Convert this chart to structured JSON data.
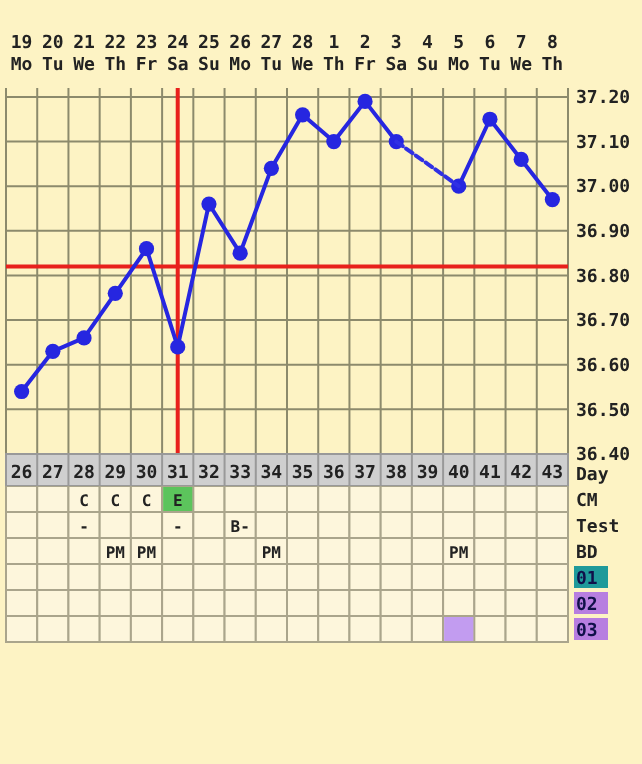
{
  "chart_data": [
    {
      "type": "line",
      "categories": [
        "26",
        "27",
        "28",
        "29",
        "30",
        "31",
        "32",
        "33",
        "34",
        "35",
        "36",
        "37",
        "38",
        "39",
        "40",
        "41",
        "42",
        "43"
      ],
      "xlabel": "Day",
      "ylim": [
        36.4,
        37.22
      ],
      "yticks": [
        {
          "value": 36.4,
          "label": "36.40"
        },
        {
          "value": 36.5,
          "label": "36.50"
        },
        {
          "value": 36.6,
          "label": "36.60"
        },
        {
          "value": 36.7,
          "label": "36.70"
        },
        {
          "value": 36.8,
          "label": "36.80"
        },
        {
          "value": 36.9,
          "label": "36.90"
        },
        {
          "value": 37.0,
          "label": "37.00"
        },
        {
          "value": 37.1,
          "label": "37.10"
        },
        {
          "value": 37.2,
          "label": "37.20"
        }
      ],
      "x2lim": [
        "--02-18T12:00",
        "--03-08T12:00"
      ],
      "x2ticks": [
        {
          "value": "--02-19",
          "label": "19 Mo"
        },
        {
          "value": "--02-20",
          "label": "20 Tu"
        },
        {
          "value": "--02-21",
          "label": "21 We"
        },
        {
          "value": "--02-22",
          "label": "22 Th"
        },
        {
          "value": "--02-23",
          "label": "23 Fr"
        },
        {
          "value": "--02-24",
          "label": "24 Sa"
        },
        {
          "value": "--02-25",
          "label": "25 Su"
        },
        {
          "value": "--02-26",
          "label": "26 Mo"
        },
        {
          "value": "--02-27",
          "label": "27 Tu"
        },
        {
          "value": "--02-28",
          "label": "28 We"
        },
        {
          "value": "--03-01",
          "label": "1 Th"
        },
        {
          "value": "--03-02",
          "label": "2 Fr"
        },
        {
          "value": "--03-03",
          "label": "3 Sa"
        },
        {
          "value": "--03-04",
          "label": "4 Su"
        },
        {
          "value": "--03-05",
          "label": "5 Mo"
        },
        {
          "value": "--03-06",
          "label": "6 Tu"
        },
        {
          "value": "--03-07",
          "label": "7 We"
        },
        {
          "value": "--03-08",
          "label": "8 Th"
        }
      ],
      "grid": true,
      "marker": "circle",
      "ref_lines": [
        {
          "axis": "y",
          "value": 36.82,
          "color": "#e8201c"
        },
        {
          "axis": "x",
          "value": "31",
          "color": "#e8201c"
        }
      ],
      "series": [
        {
          "color": "#2626e0",
          "line_style": "solid",
          "values": [
            36.54,
            36.63,
            36.66,
            36.76,
            36.86,
            36.64,
            36.96,
            36.85,
            37.04,
            37.16,
            37.1,
            37.19,
            37.1,
            null,
            37.0,
            37.15,
            37.06,
            36.97
          ]
        },
        {
          "color": "#3030e4",
          "line_style": "dashed",
          "marker": "none",
          "values": [
            null,
            null,
            null,
            null,
            null,
            null,
            null,
            null,
            null,
            null,
            null,
            null,
            37.1,
            37.05,
            37.0,
            null,
            null,
            null
          ]
        }
      ]
    },
    {
      "type": "other",
      "y_categories": [
        "CM",
        "Test",
        "BD",
        "01",
        "02",
        "03"
      ],
      "cell_labels": [
        [
          null,
          null,
          "C",
          "C",
          "C",
          "E",
          null,
          null,
          null,
          null,
          null,
          null,
          null,
          null,
          null,
          null,
          null,
          null
        ],
        [
          null,
          null,
          "-",
          null,
          null,
          "-",
          null,
          "B-",
          null,
          null,
          null,
          null,
          null,
          null,
          null,
          null,
          null,
          null
        ],
        [
          null,
          null,
          null,
          "PM",
          "PM",
          null,
          null,
          null,
          "PM",
          null,
          null,
          null,
          null,
          null,
          "PM",
          null,
          null,
          null
        ],
        [
          null,
          null,
          null,
          null,
          null,
          null,
          null,
          null,
          null,
          null,
          null,
          null,
          null,
          null,
          null,
          null,
          null,
          null
        ],
        [
          null,
          null,
          null,
          null,
          null,
          null,
          null,
          null,
          null,
          null,
          null,
          null,
          null,
          null,
          null,
          null,
          null,
          null
        ],
        [
          null,
          null,
          null,
          null,
          null,
          null,
          null,
          null,
          null,
          null,
          null,
          null,
          null,
          null,
          null,
          null,
          null,
          null
        ]
      ],
      "colors": [
        [
          null,
          null,
          null,
          null,
          null,
          "#5cc45c",
          null,
          null,
          null,
          null,
          null,
          null,
          null,
          null,
          null,
          null,
          null,
          null,
          null
        ],
        [
          null,
          null,
          null,
          null,
          null,
          null,
          null,
          null,
          null,
          null,
          null,
          null,
          null,
          null,
          null,
          null,
          null,
          null,
          null
        ],
        [
          null,
          null,
          null,
          null,
          null,
          null,
          null,
          null,
          null,
          null,
          null,
          null,
          null,
          null,
          null,
          null,
          null,
          null,
          null
        ],
        [
          null,
          null,
          null,
          null,
          null,
          null,
          null,
          null,
          null,
          null,
          null,
          null,
          null,
          null,
          null,
          null,
          null,
          null,
          "#1f9a9a"
        ],
        [
          null,
          null,
          null,
          null,
          null,
          null,
          null,
          null,
          null,
          null,
          null,
          null,
          null,
          null,
          null,
          null,
          null,
          null,
          "#b77ee0"
        ],
        [
          null,
          null,
          null,
          null,
          null,
          null,
          null,
          null,
          null,
          null,
          null,
          null,
          null,
          null,
          "#c29cf0",
          null,
          null,
          null,
          "#b77ee0"
        ]
      ]
    }
  ]
}
